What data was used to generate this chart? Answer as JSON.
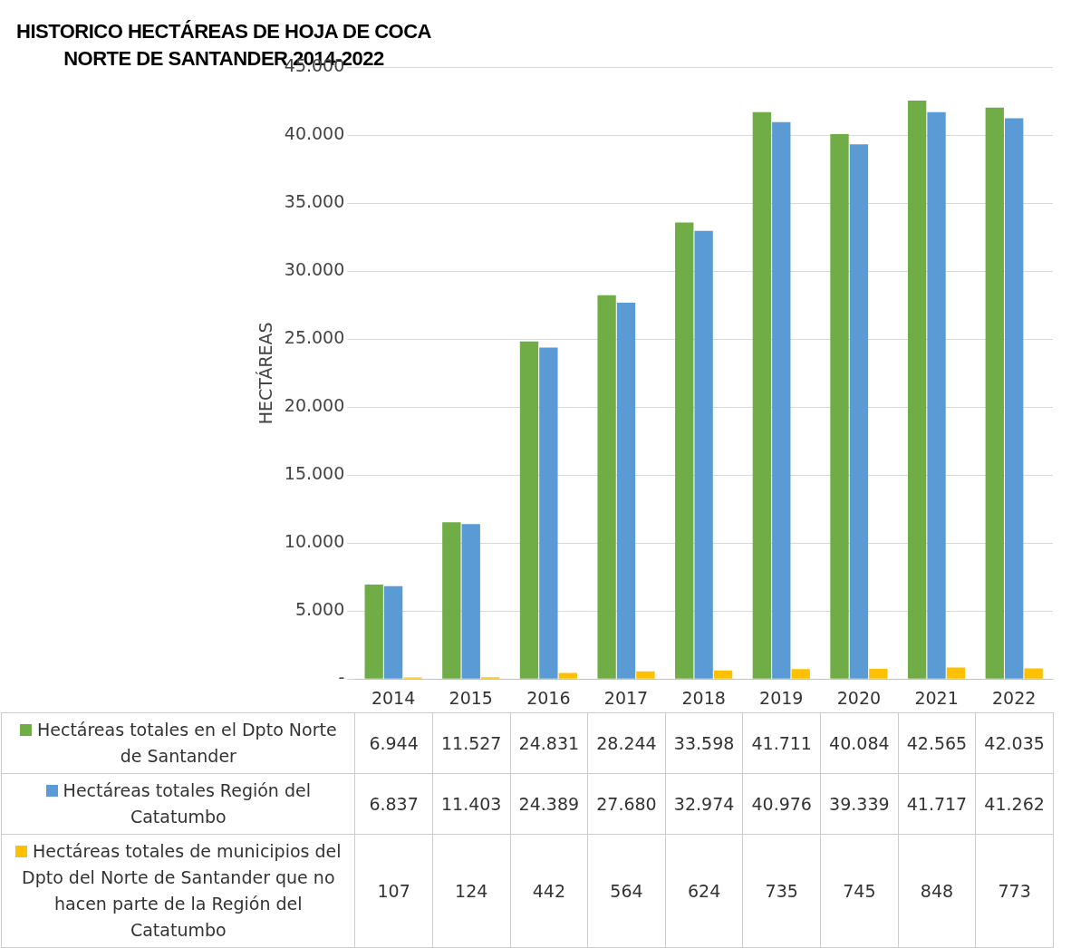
{
  "chart_data": {
    "type": "bar",
    "title": "HISTORICO HECTÁREAS DE HOJA DE COCA\nNORTE DE SANTANDER 2014-2022",
    "ylabel": "HECTÁREAS",
    "categories": [
      "2014",
      "2015",
      "2016",
      "2017",
      "2018",
      "2019",
      "2020",
      "2021",
      "2022"
    ],
    "series": [
      {
        "name": "Hectáreas totales en el Dpto Norte de Santander",
        "color": "#70ad47",
        "values": [
          6944,
          11527,
          24831,
          28244,
          33598,
          41711,
          40084,
          42565,
          42035
        ],
        "value_labels": [
          "6.944",
          "11.527",
          "24.831",
          "28.244",
          "33.598",
          "41.711",
          "40.084",
          "42.565",
          "42.035"
        ]
      },
      {
        "name": "Hectáreas totales Región del Catatumbo",
        "color": "#5b9bd5",
        "values": [
          6837,
          11403,
          24389,
          27680,
          32974,
          40976,
          39339,
          41717,
          41262
        ],
        "value_labels": [
          "6.837",
          "11.403",
          "24.389",
          "27.680",
          "32.974",
          "40.976",
          "39.339",
          "41.717",
          "41.262"
        ]
      },
      {
        "name": "Hectáreas totales de municipios del Dpto del Norte de Santander que no hacen parte de la Región del Catatumbo",
        "color": "#ffc000",
        "values": [
          107,
          124,
          442,
          564,
          624,
          735,
          745,
          848,
          773
        ],
        "value_labels": [
          "107",
          "124",
          "442",
          "564",
          "624",
          "735",
          "745",
          "848",
          "773"
        ]
      }
    ],
    "ylim": [
      0,
      45000
    ],
    "yticks": [
      {
        "value": 0,
        "label": "-"
      },
      {
        "value": 5000,
        "label": "5.000"
      },
      {
        "value": 10000,
        "label": "10.000"
      },
      {
        "value": 15000,
        "label": "15.000"
      },
      {
        "value": 20000,
        "label": "20.000"
      },
      {
        "value": 25000,
        "label": "25.000"
      },
      {
        "value": 30000,
        "label": "30.000"
      },
      {
        "value": 35000,
        "label": "35.000"
      },
      {
        "value": 40000,
        "label": "40.000"
      },
      {
        "value": 45000,
        "label": "45.000"
      }
    ],
    "grid": "y",
    "legend": "bottom"
  }
}
